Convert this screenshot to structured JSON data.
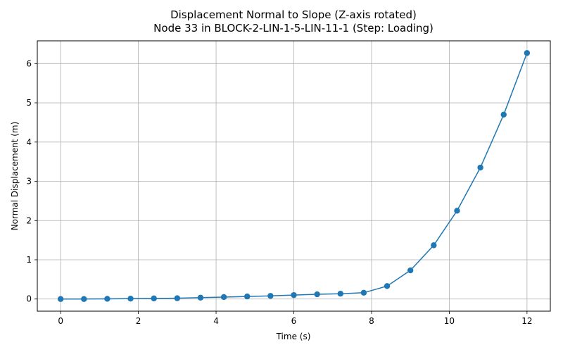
{
  "chart_data": {
    "type": "line",
    "title": [
      "Displacement Normal to Slope (Z-axis rotated)",
      "Node 33 in BLOCK-2-LIN-1-5-LIN-11-1 (Step: Loading)"
    ],
    "xlabel": "Time (s)",
    "ylabel": "Normal Displacement (m)",
    "xlim": [
      -0.6,
      12.6
    ],
    "ylim": [
      -0.31,
      6.58
    ],
    "xticks": [
      0,
      2,
      4,
      6,
      8,
      10,
      12
    ],
    "yticks": [
      0,
      1,
      2,
      3,
      4,
      5,
      6
    ],
    "grid": true,
    "marker": "circle",
    "color": "#1f77b4",
    "series": [
      {
        "x": [
          0,
          0.6,
          1.2,
          1.8,
          2.4,
          3.0,
          3.6,
          4.2,
          4.8,
          5.4,
          6.0,
          6.6,
          7.2,
          7.8,
          8.4,
          9.0,
          9.6,
          10.2,
          10.8,
          11.4,
          12.0
        ],
        "y": [
          0.0,
          0.0,
          0.005,
          0.01,
          0.015,
          0.02,
          0.035,
          0.05,
          0.065,
          0.08,
          0.1,
          0.12,
          0.135,
          0.16,
          0.33,
          0.73,
          1.37,
          2.25,
          3.35,
          4.7,
          6.27
        ]
      }
    ]
  }
}
